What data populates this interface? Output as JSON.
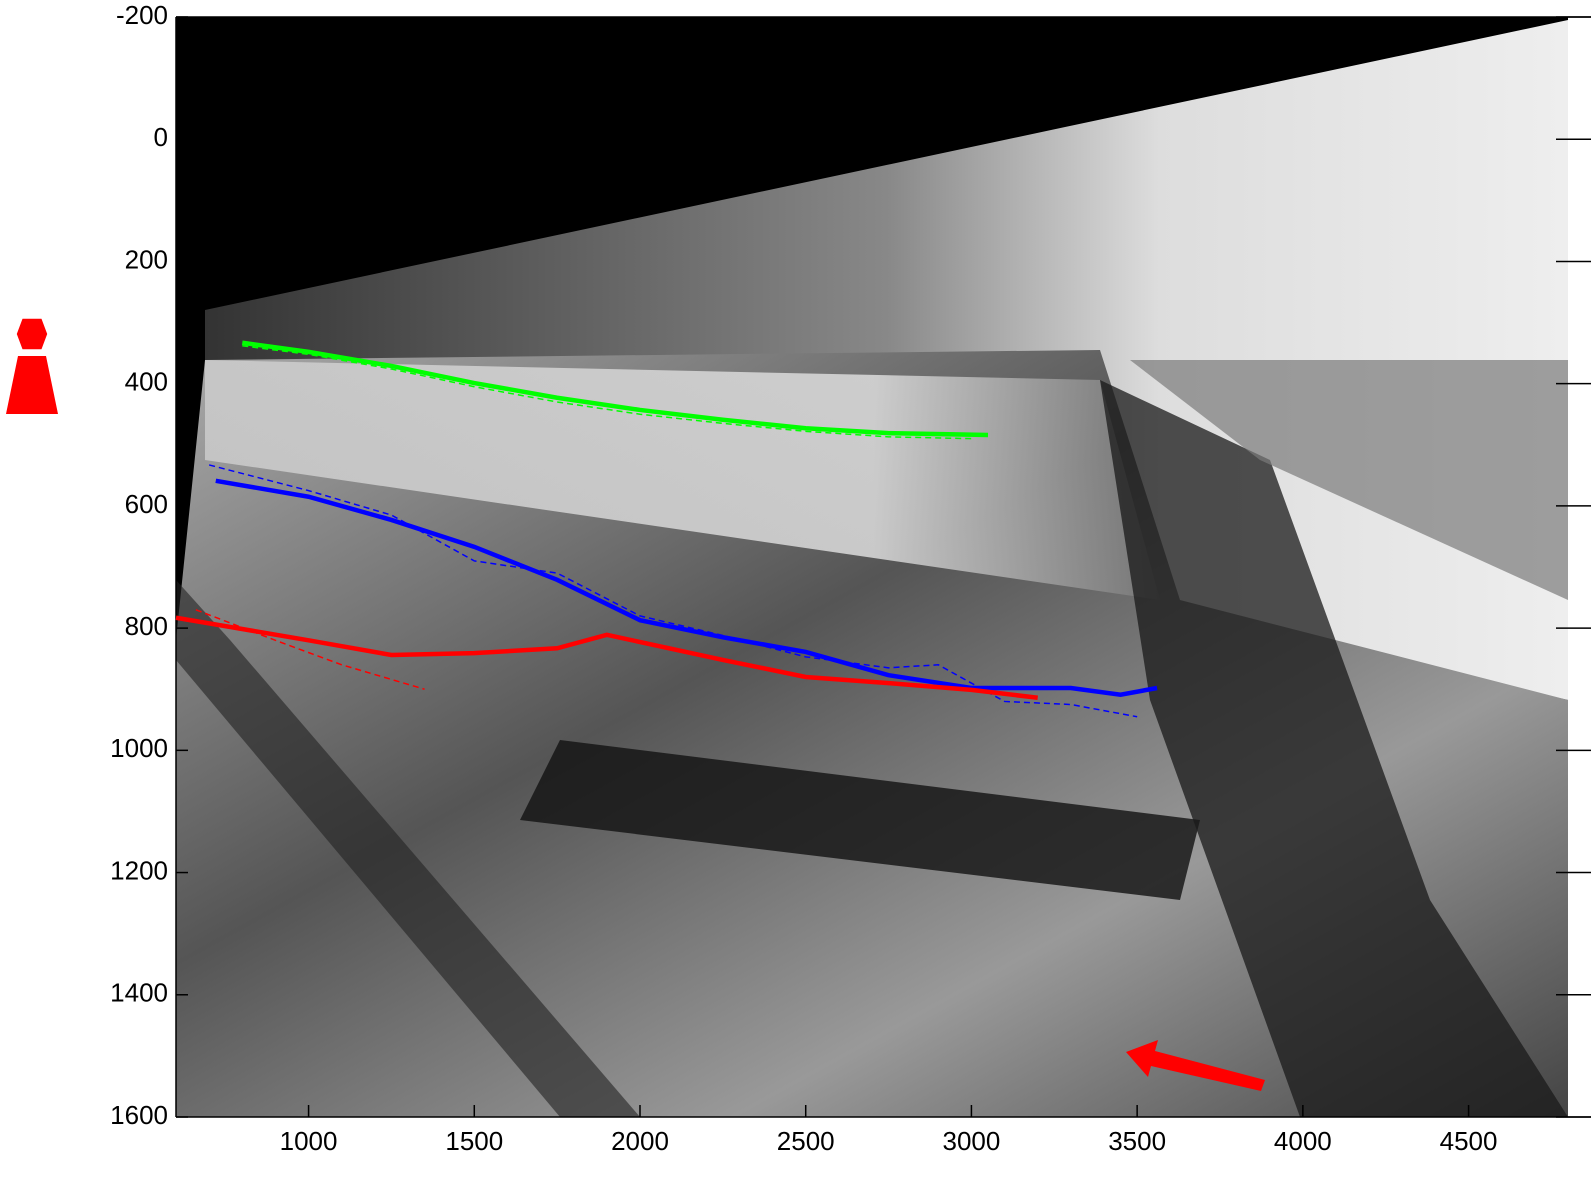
{
  "chart_data": {
    "type": "line",
    "xlim": [
      600,
      4800
    ],
    "ylim": [
      -200,
      1600
    ],
    "y_reversed": true,
    "xticks": [
      1000,
      1500,
      2000,
      2500,
      3000,
      3500,
      4000,
      4500
    ],
    "yticks": [
      -200,
      0,
      200,
      400,
      600,
      800,
      1000,
      1200,
      1400,
      1600
    ],
    "series": [
      {
        "color": "#00ff00",
        "style": "solid",
        "x": [
          800,
          1000,
          1250,
          1500,
          1750,
          2000,
          2250,
          2500,
          2750,
          3050
        ],
        "values": [
          333,
          348,
          371,
          399,
          423,
          443,
          459,
          473,
          481,
          484
        ]
      },
      {
        "color": "#00ff00",
        "style": "dashed",
        "x": [
          800,
          1000,
          1250,
          1500,
          1750,
          2000,
          2250,
          2500,
          2750,
          3000
        ],
        "values": [
          338,
          352,
          376,
          405,
          430,
          450,
          465,
          478,
          487,
          490
        ]
      },
      {
        "color": "#0000ff",
        "style": "solid",
        "x": [
          720,
          1000,
          1250,
          1500,
          1750,
          2000,
          2250,
          2500,
          2750,
          3000,
          3300,
          3450,
          3560
        ],
        "values": [
          559,
          585,
          623,
          667,
          721,
          787,
          815,
          839,
          877,
          898,
          898,
          909,
          898
        ]
      },
      {
        "color": "#0000ff",
        "style": "dashed",
        "x": [
          700,
          1000,
          1250,
          1500,
          1750,
          2000,
          2250,
          2500,
          2750,
          2900,
          3100,
          3300,
          3500
        ],
        "values": [
          533,
          575,
          615,
          690,
          710,
          780,
          812,
          847,
          865,
          860,
          920,
          925,
          945
        ]
      },
      {
        "color": "#ff0000",
        "style": "solid",
        "x": [
          600,
          1000,
          1250,
          1500,
          1750,
          1900,
          2250,
          2500,
          2750,
          3000,
          3200
        ],
        "values": [
          783,
          820,
          844,
          841,
          833,
          811,
          852,
          880,
          890,
          901,
          914
        ]
      },
      {
        "color": "#ff0000",
        "style": "dashed",
        "x": [
          660,
          900,
          1100,
          1350
        ],
        "values": [
          770,
          820,
          860,
          900
        ]
      }
    ]
  }
}
